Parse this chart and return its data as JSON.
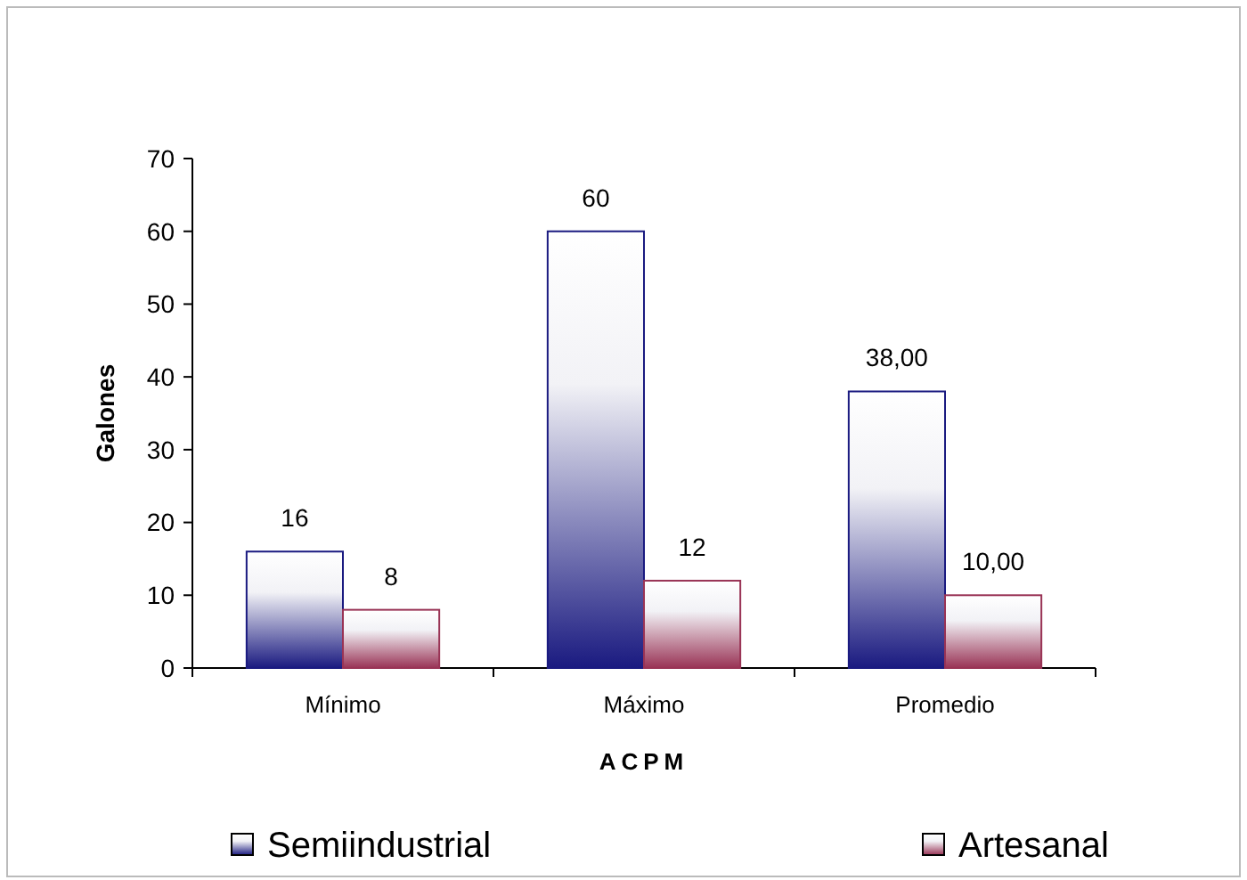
{
  "chart_data": {
    "type": "bar",
    "xlabel": "ACPM",
    "ylabel": "Galones",
    "categories": [
      "Mínimo",
      "Máximo",
      "Promedio"
    ],
    "series": [
      {
        "name": "Semiindustrial",
        "color": "#1a1a80",
        "values": [
          16,
          60,
          38
        ],
        "value_labels": [
          "16",
          "60",
          "38,00"
        ]
      },
      {
        "name": "Artesanal",
        "color": "#993355",
        "values": [
          8,
          12,
          10
        ],
        "value_labels": [
          "8",
          "12",
          "10,00"
        ]
      }
    ],
    "ylim": [
      0,
      70
    ],
    "yticks": [
      0,
      10,
      20,
      30,
      40,
      50,
      60,
      70
    ],
    "grid": false,
    "legend": "bottom"
  }
}
